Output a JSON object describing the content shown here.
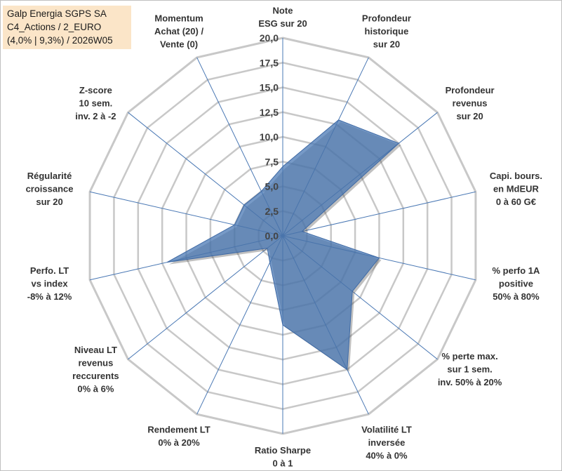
{
  "info": {
    "line1": "Galp Energia SGPS SA",
    "line2": "C4_Actions / 2_EURO",
    "line3": "(4,0% | 9,3%) / 2026W05"
  },
  "chart_data": {
    "type": "radar",
    "title": "Galp Energia SGPS SA",
    "rmin": 0,
    "rmax": 20,
    "ticks": [
      "0,0",
      "2,5",
      "5,0",
      "7,5",
      "10,0",
      "12,5",
      "15,0",
      "17,5",
      "20,0"
    ],
    "axes": [
      {
        "lines": [
          "Note",
          "ESG sur 20"
        ],
        "value": 7.0
      },
      {
        "lines": [
          "Profondeur",
          "historique",
          "sur 20"
        ],
        "value": 13.0
      },
      {
        "lines": [
          "Profondeur",
          "revenus",
          "sur 20"
        ],
        "value": 15.0
      },
      {
        "lines": [
          "Capi. bours.",
          "en MdEUR",
          "0 à 60 G€"
        ],
        "value": 2.0
      },
      {
        "lines": [
          "% perfo 1A",
          "positive",
          "50% à 80%"
        ],
        "value": 10.0
      },
      {
        "lines": [
          "% perte max.",
          "sur 1 sem.",
          "inv. 50% à 20%"
        ],
        "value": 9.0
      },
      {
        "lines": [
          "Volatilité LT",
          "inversée",
          "40% à 0%"
        ],
        "value": 15.0
      },
      {
        "lines": [
          "Ratio Sharpe",
          "0 à 1"
        ],
        "value": 9.0
      },
      {
        "lines": [
          "Rendement LT",
          "0% à 20%"
        ],
        "value": 3.0
      },
      {
        "lines": [
          "Niveau LT",
          "revenus",
          "reccurents",
          "0% à 6%"
        ],
        "value": 2.0
      },
      {
        "lines": [
          "Perfo. LT",
          "vs index",
          "-8% à 12%"
        ],
        "value": 12.0
      },
      {
        "lines": [
          "Régularité",
          "croissance",
          "sur 20"
        ],
        "value": 5.0
      },
      {
        "lines": [
          "Z-score",
          "10 sem.",
          "inv. 2 à -2"
        ],
        "value": 5.0
      },
      {
        "lines": [
          "Momentum",
          "Achat (20) /",
          "Vente (0)"
        ],
        "value": 5.0
      }
    ],
    "series": [
      {
        "name": "Galp Energia SGPS SA",
        "color": "#4a78b4"
      }
    ],
    "colors": {
      "grid": "#c8c8c8",
      "spoke": "#4a78b4",
      "fill": "#4a78b4"
    }
  }
}
